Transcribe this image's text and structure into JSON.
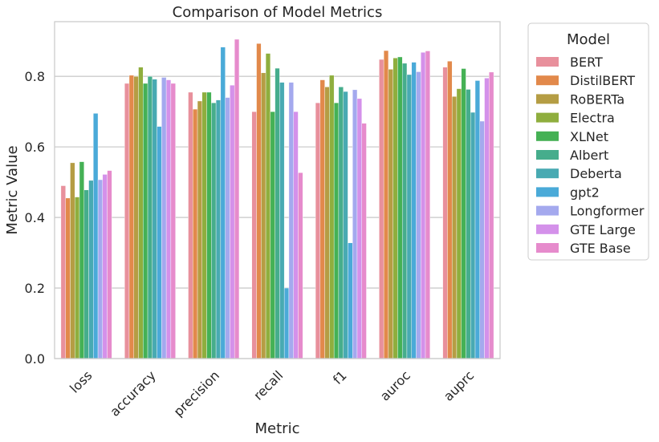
{
  "chart_data": {
    "type": "bar",
    "title": "Comparison of Model Metrics",
    "xlabel": "Metric",
    "ylabel": "Metric Value",
    "ylim": [
      0,
      0.955
    ],
    "yticks": [
      "0.0",
      "0.2",
      "0.4",
      "0.6",
      "0.8"
    ],
    "ytick_values": [
      0.0,
      0.2,
      0.4,
      0.6,
      0.8
    ],
    "grid": "horizontal",
    "legend_title": "Model",
    "legend_placement": "outside-right",
    "categories": [
      "loss",
      "accuracy",
      "precision",
      "recall",
      "f1",
      "auroc",
      "auprc"
    ],
    "series": [
      {
        "name": "BERT",
        "color": "#e8909c",
        "values": [
          0.49,
          0.78,
          0.755,
          0.7,
          0.725,
          0.848,
          0.826
        ]
      },
      {
        "name": "DistilBERT",
        "color": "#e2894b",
        "values": [
          0.455,
          0.803,
          0.707,
          0.893,
          0.79,
          0.873,
          0.843
        ]
      },
      {
        "name": "RoBERTa",
        "color": "#b59d44",
        "values": [
          0.555,
          0.8,
          0.73,
          0.81,
          0.77,
          0.82,
          0.743
        ]
      },
      {
        "name": "Electra",
        "color": "#8fae3e",
        "values": [
          0.458,
          0.826,
          0.755,
          0.865,
          0.803,
          0.852,
          0.765
        ]
      },
      {
        "name": "XLNet",
        "color": "#45b155",
        "values": [
          0.558,
          0.78,
          0.755,
          0.7,
          0.725,
          0.855,
          0.822
        ]
      },
      {
        "name": "Albert",
        "color": "#46ad8c",
        "values": [
          0.478,
          0.8,
          0.725,
          0.823,
          0.77,
          0.837,
          0.763
        ]
      },
      {
        "name": "Deberta",
        "color": "#48aab2",
        "values": [
          0.505,
          0.792,
          0.733,
          0.783,
          0.757,
          0.805,
          0.698
        ]
      },
      {
        "name": "gpt2",
        "color": "#4aaad8",
        "values": [
          0.695,
          0.658,
          0.883,
          0.2,
          0.328,
          0.84,
          0.788
        ]
      },
      {
        "name": "Longformer",
        "color": "#a4a9ee",
        "values": [
          0.507,
          0.797,
          0.74,
          0.783,
          0.762,
          0.813,
          0.673
        ]
      },
      {
        "name": "GTE Large",
        "color": "#d491ea",
        "values": [
          0.522,
          0.79,
          0.775,
          0.7,
          0.737,
          0.868,
          0.795
        ]
      },
      {
        "name": "GTE Base",
        "color": "#e68bcc",
        "values": [
          0.533,
          0.78,
          0.905,
          0.527,
          0.667,
          0.872,
          0.812
        ]
      }
    ]
  }
}
